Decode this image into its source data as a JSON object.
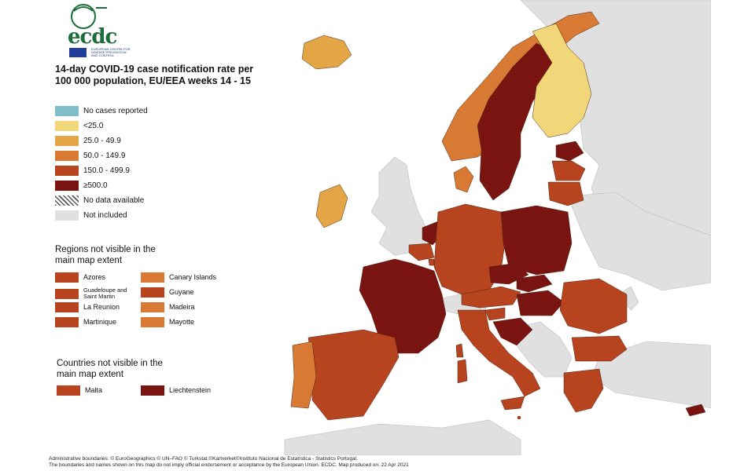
{
  "colors": {
    "sea": "#ffffff",
    "not_included": "#e0e0e0",
    "no_cases": "#7fbfc9",
    "lt25": "#f2d67a",
    "c25_49": "#e3a546",
    "c50_149": "#d87a33",
    "c150_499": "#b8441f",
    "ge500": "#7a1410",
    "border": "#4a2a1a"
  },
  "logo": {
    "name": "ecdc",
    "subtitle": "EUROPEAN CENTRE FOR DISEASE PREVENTION AND CONTROL"
  },
  "title": "14-day COVID-19 case notification rate per 100 000 population, EU/EEA weeks 14 - 15",
  "legend": [
    {
      "label": "No cases reported",
      "color": "#7fbfc9"
    },
    {
      "label": "<25.0",
      "color": "#f2d67a"
    },
    {
      "label": "25.0 - 49.9",
      "color": "#e3a546"
    },
    {
      "label": "50.0 - 149.9",
      "color": "#d87a33"
    },
    {
      "label": "150.0 - 499.9",
      "color": "#b8441f"
    },
    {
      "label": "≥500.0",
      "color": "#7a1410"
    },
    {
      "label": "No data available",
      "color": "hatched"
    },
    {
      "label": "Not included",
      "color": "#e0e0e0"
    }
  ],
  "regions_title": "Regions not visible in the main map extent",
  "regions_left": [
    {
      "label": "Azores",
      "color": "#b8441f"
    },
    {
      "label": "Guadeloupe and Saint Martin",
      "color": "#b8441f"
    },
    {
      "label": "La Reunion",
      "color": "#b8441f"
    },
    {
      "label": "Martinique",
      "color": "#b8441f"
    }
  ],
  "regions_right": [
    {
      "label": "Canary Islands",
      "color": "#d87a33"
    },
    {
      "label": "Guyane",
      "color": "#b8441f"
    },
    {
      "label": "Madeira",
      "color": "#d87a33"
    },
    {
      "label": "Mayotte",
      "color": "#d87a33"
    }
  ],
  "countries_title": "Countries not visible in the main map extent",
  "countries": [
    {
      "label": "Malta",
      "color": "#b8441f"
    },
    {
      "label": "Liechtenstein",
      "color": "#7a1410"
    }
  ],
  "footer": {
    "line1": "Administrative boundaries: © EuroGeographics © UN–FAO © Turkstat.©Kartverket©Instituto Nacional de Estatística - Statistics Portugal.",
    "line2": "The boundaries and names shown on this map do not imply official endorsement or acceptance by the European Union. ECDC. Map produced on: 22 Apr 2021"
  }
}
